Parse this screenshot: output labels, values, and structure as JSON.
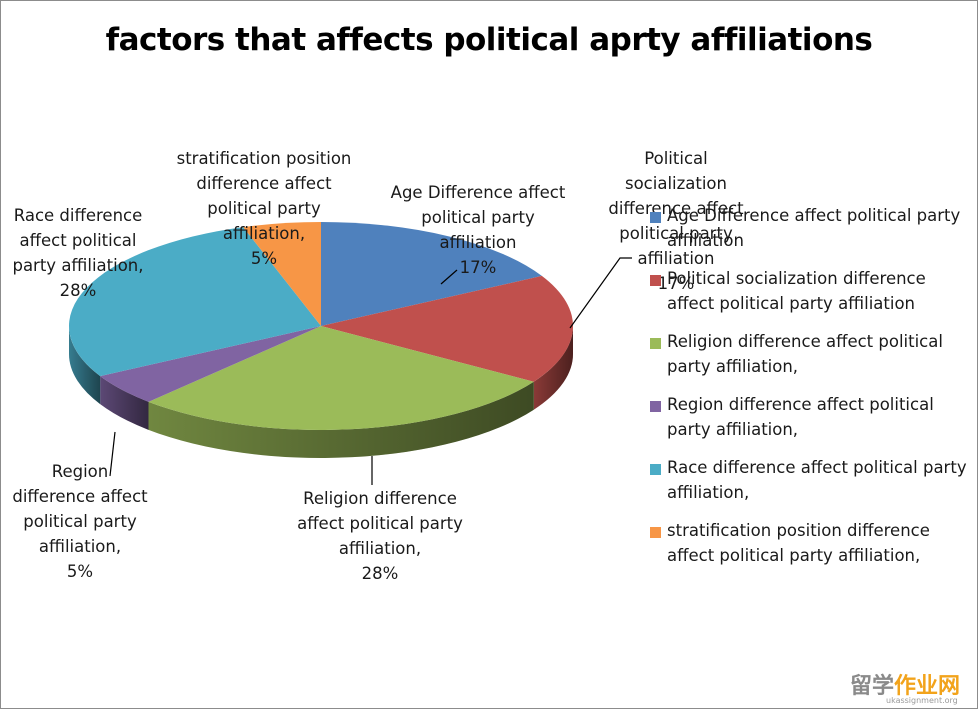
{
  "chart_data": {
    "type": "pie",
    "title": "factors that affects political aprty affiliations",
    "legend_position": "right",
    "slices": [
      {
        "name": "Age Difference affect political party affiliation",
        "value": 17,
        "color": "#4F81BD"
      },
      {
        "name": "Political socialization difference affect political party affiliation",
        "value": 17,
        "color": "#C0504D"
      },
      {
        "name": "Religion difference affect political party affiliation,",
        "value": 28,
        "color": "#9BBB59"
      },
      {
        "name": "Region difference affect political party affiliation,",
        "value": 5,
        "color": "#8064A2"
      },
      {
        "name": "Race difference affect political party affiliation,",
        "value": 28,
        "color": "#4BACC6"
      },
      {
        "name": "stratification position difference affect political party affiliation,",
        "value": 5,
        "color": "#F79646"
      }
    ]
  },
  "data_labels": [
    {
      "text": "Age Difference affect\npolitical party\naffiliation\n17%"
    },
    {
      "text": "Political\nsocialization\ndifference affect\npolitical party\naffiliation\n17%"
    },
    {
      "text": "Religion difference\naffect political party\naffiliation,\n28%"
    },
    {
      "text": "Region\ndifference affect\npolitical party\naffiliation,\n5%"
    },
    {
      "text": "Race difference\naffect political\nparty affiliation,\n28%"
    },
    {
      "text": "stratification position\ndifference affect\npolitical party\naffiliation,\n5%"
    }
  ],
  "legend": [
    "Age Difference affect political party affiliation",
    "Political socialization difference affect political party affiliation",
    "Religion difference affect political party affiliation,",
    "Region difference affect political party affiliation,",
    "Race difference affect political party affiliation,",
    "stratification position difference affect political party affiliation,"
  ],
  "watermark": {
    "part1": "留学",
    "part2": "作业",
    "part3": "网",
    "sub": "ukassignment.org"
  }
}
